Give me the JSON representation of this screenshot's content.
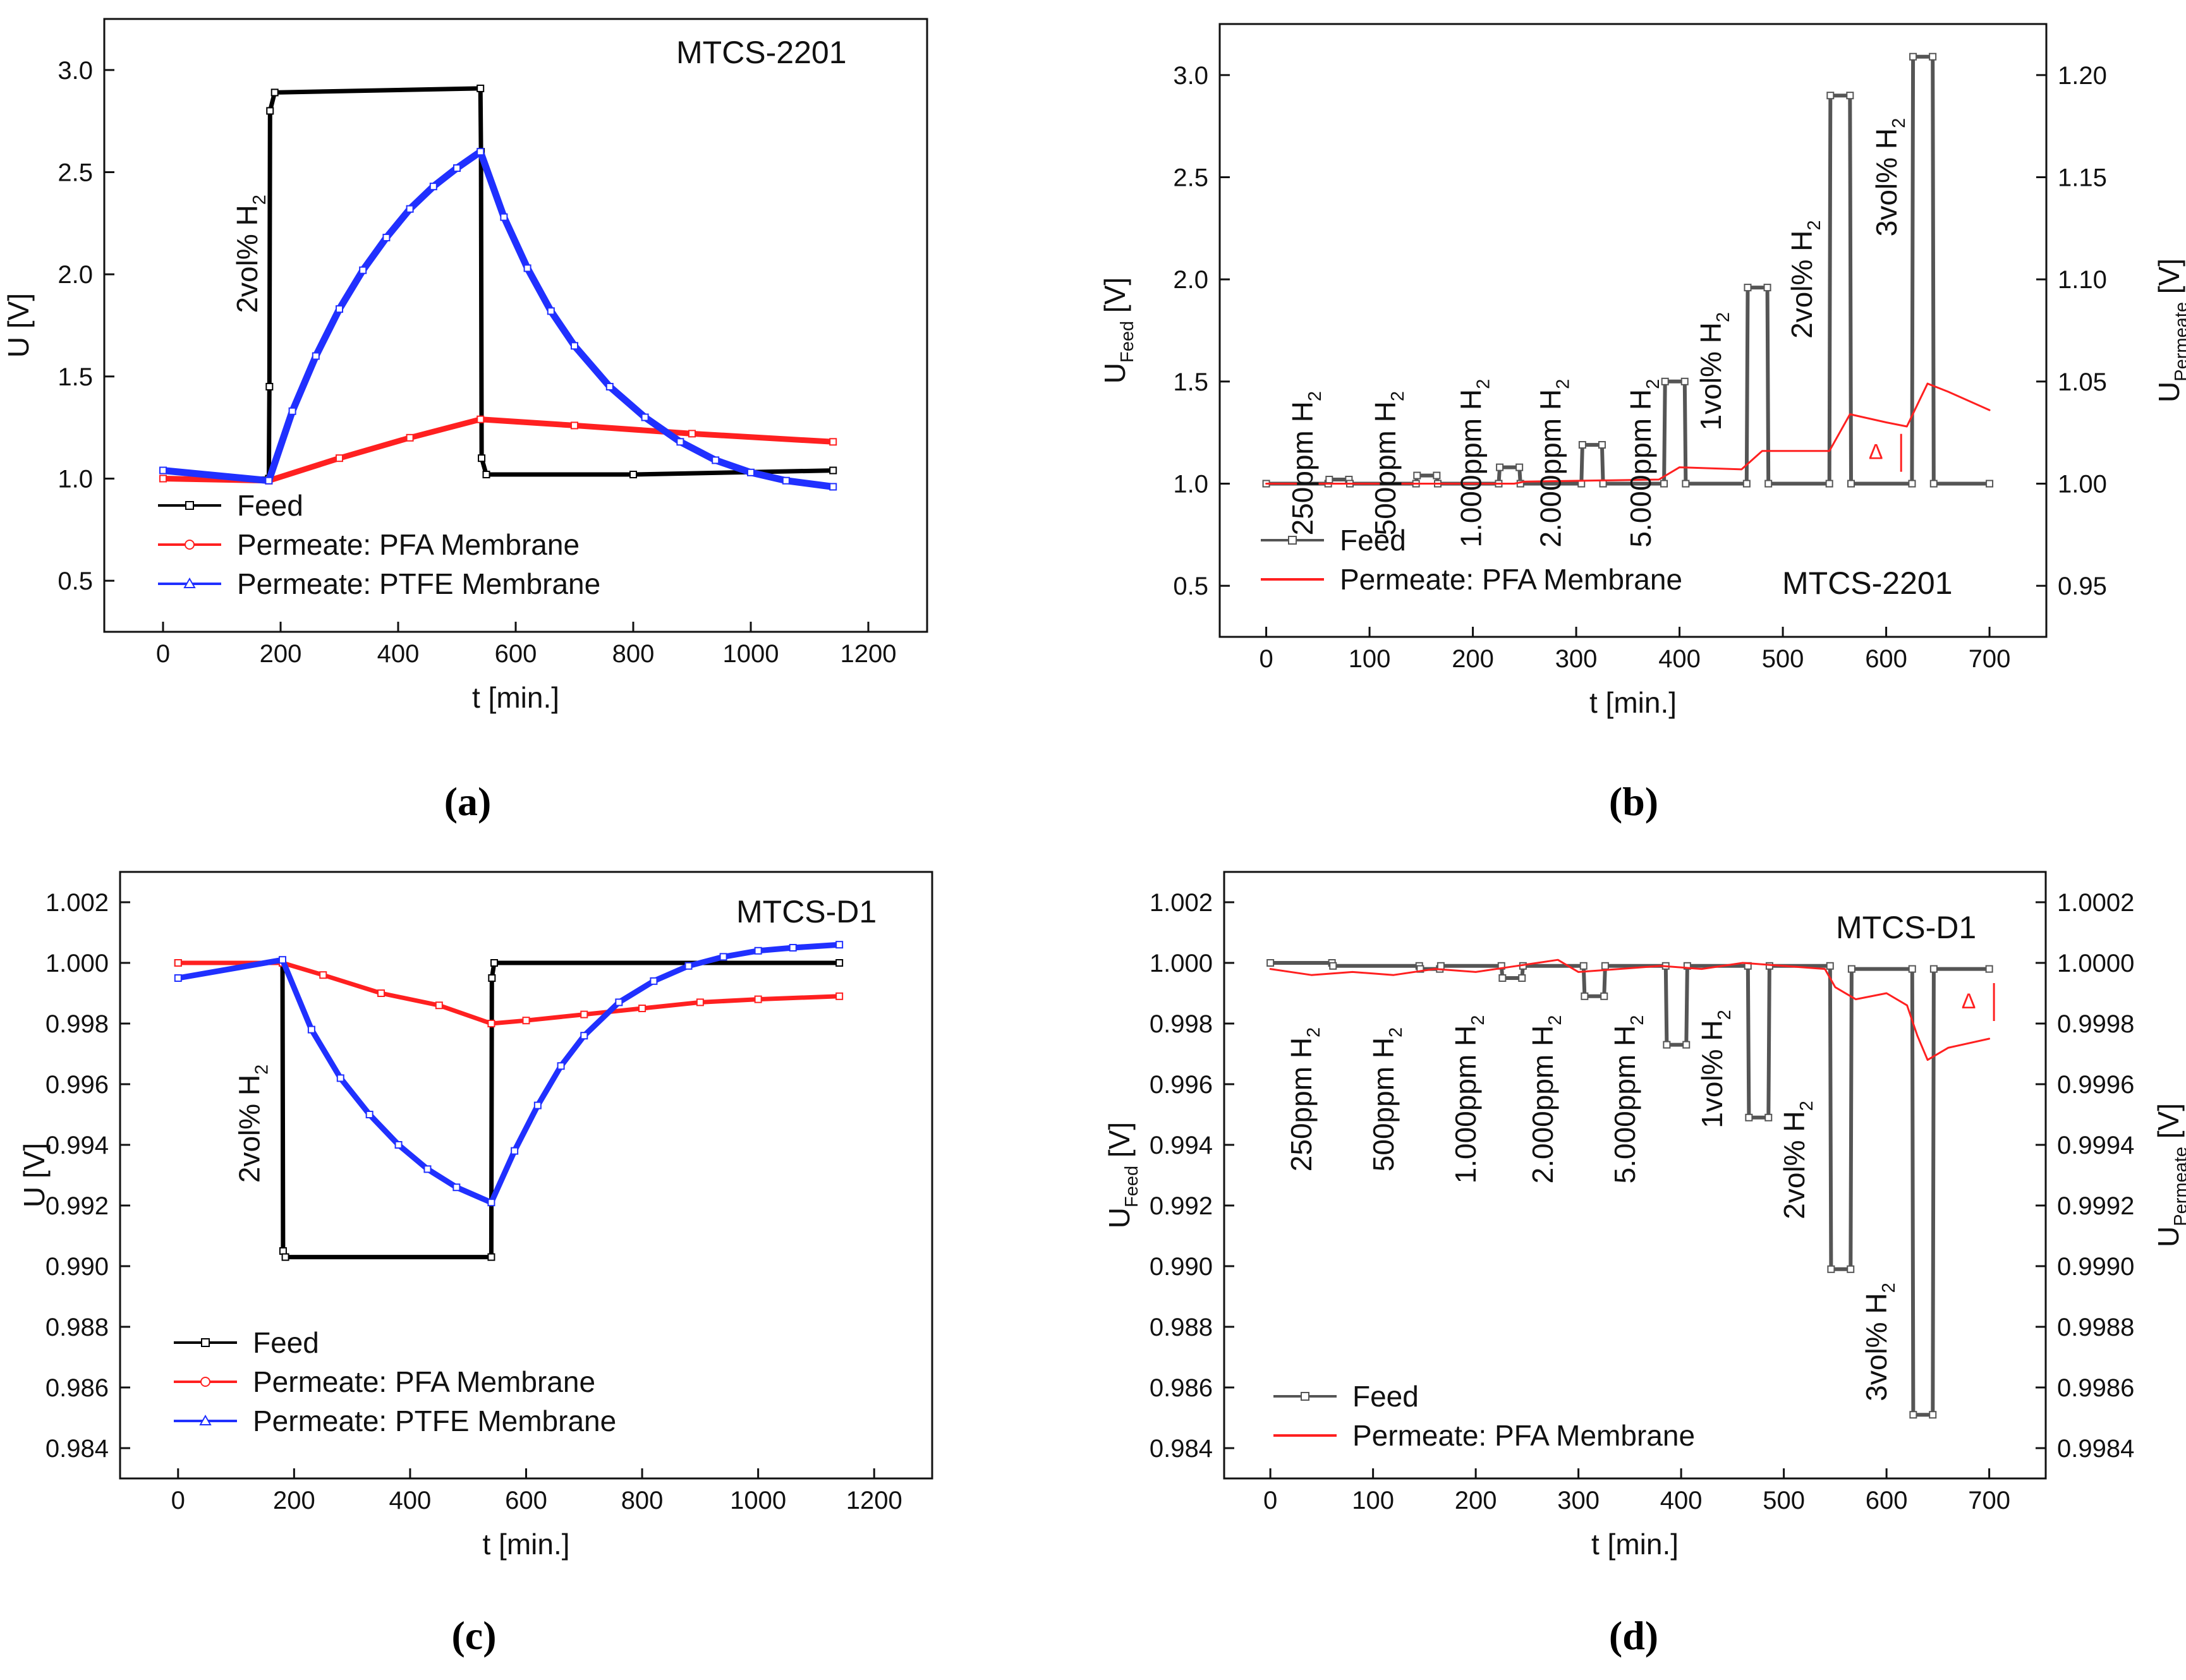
{
  "chart_data": [
    {
      "id": "a",
      "type": "line",
      "caption": "(a)",
      "title": "MTCS-2201",
      "xlabel": "t [min.]",
      "ylabel": "U [V]",
      "xlim": [
        -100,
        1300
      ],
      "ylim": [
        0.25,
        3.25
      ],
      "xticks": [
        0,
        200,
        400,
        600,
        800,
        1000,
        1200
      ],
      "yticks": [
        0.5,
        1.0,
        1.5,
        2.0,
        2.5,
        3.0
      ],
      "ytick_labels": [
        "0.5",
        "1.0",
        "1.5",
        "2.0",
        "2.5",
        "3.0"
      ],
      "annotations": [
        {
          "text": "2vol% H",
          "sub": "2",
          "x": 160,
          "y": 2.1,
          "rotate": -90
        }
      ],
      "legend": [
        {
          "name": "Feed",
          "color": "#000000",
          "marker": "square"
        },
        {
          "name": "Permeate: PFA Membrane",
          "color": "#ff2020",
          "marker": "circle"
        },
        {
          "name": "Permeate: PTFE Membrane",
          "color": "#2030ff",
          "marker": "triangle"
        }
      ],
      "series": [
        {
          "name": "Feed",
          "color": "#000000",
          "width": 7,
          "x": [
            0,
            180,
            181,
            182,
            190,
            540,
            541,
            542,
            550,
            800,
            1140
          ],
          "y": [
            1.0,
            1.0,
            1.45,
            2.8,
            2.89,
            2.91,
            2.6,
            1.1,
            1.02,
            1.02,
            1.04
          ]
        },
        {
          "name": "Permeate: PFA Membrane",
          "color": "#ff2020",
          "width": 9,
          "x": [
            0,
            180,
            300,
            420,
            540,
            700,
            900,
            1140
          ],
          "y": [
            1.0,
            0.99,
            1.1,
            1.2,
            1.29,
            1.26,
            1.22,
            1.18
          ]
        },
        {
          "name": "Permeate: PTFE Membrane",
          "color": "#2030ff",
          "width": 11,
          "x": [
            0,
            180,
            220,
            260,
            300,
            340,
            380,
            420,
            460,
            500,
            540,
            580,
            620,
            660,
            700,
            760,
            820,
            880,
            940,
            1000,
            1060,
            1140
          ],
          "y": [
            1.04,
            0.99,
            1.33,
            1.6,
            1.83,
            2.02,
            2.18,
            2.32,
            2.43,
            2.52,
            2.6,
            2.28,
            2.03,
            1.82,
            1.65,
            1.45,
            1.3,
            1.18,
            1.09,
            1.03,
            0.99,
            0.96
          ]
        }
      ]
    },
    {
      "id": "b",
      "type": "line",
      "caption": "(b)",
      "title": "MTCS-2201",
      "xlabel": "t [min.]",
      "ylabel": "U",
      "ylabel_sub": "Feed",
      "ylabel_unit": " [V]",
      "y2label": "U",
      "y2label_sub": "Permeate",
      "y2label_unit": " [V]",
      "xlim": [
        -45,
        755
      ],
      "ylim": [
        0.25,
        3.25
      ],
      "y2lim": [
        0.925,
        1.225
      ],
      "xticks": [
        0,
        100,
        200,
        300,
        400,
        500,
        600,
        700
      ],
      "yticks": [
        0.5,
        1.0,
        1.5,
        2.0,
        2.5,
        3.0
      ],
      "ytick_labels": [
        "0.5",
        "1.0",
        "1.5",
        "2.0",
        "2.5",
        "3.0"
      ],
      "y2ticks": [
        0.95,
        1.0,
        1.05,
        1.1,
        1.15,
        1.2
      ],
      "y2tick_labels": [
        "0.95",
        "1.00",
        "1.05",
        "1.10",
        "1.15",
        "1.20"
      ],
      "annotations": [
        {
          "text": "250ppm H",
          "sub": "2",
          "x": 45,
          "y": 1.1,
          "rotate": -90
        },
        {
          "text": "500ppm H",
          "sub": "2",
          "x": 125,
          "y": 1.1,
          "rotate": -90
        },
        {
          "text": "1.000ppm H",
          "sub": "2",
          "x": 208,
          "y": 1.1,
          "rotate": -90
        },
        {
          "text": "2.000ppm H",
          "sub": "2",
          "x": 285,
          "y": 1.1,
          "rotate": -90
        },
        {
          "text": "5.000ppm H",
          "sub": "2",
          "x": 372,
          "y": 1.1,
          "rotate": -90
        },
        {
          "text": "1vol% H",
          "sub": "2",
          "x": 440,
          "y": 1.55,
          "rotate": -90
        },
        {
          "text": "2vol% H",
          "sub": "2",
          "x": 528,
          "y": 2.0,
          "rotate": -90
        },
        {
          "text": "3vol% H",
          "sub": "2",
          "x": 610,
          "y": 2.5,
          "rotate": -90
        },
        {
          "text": "Δ",
          "x": 590,
          "y": 1.12,
          "rotate": 0,
          "color": "#ff2020"
        }
      ],
      "legend": [
        {
          "name": "Feed",
          "color": "#555555",
          "marker": "square"
        },
        {
          "name": "Permeate: PFA Membrane",
          "color": "#ff2020",
          "marker": "none"
        }
      ],
      "series": [
        {
          "name": "Feed",
          "color": "#555555",
          "width": 6,
          "x": [
            0,
            60,
            61,
            80,
            81,
            145,
            146,
            165,
            166,
            225,
            226,
            245,
            246,
            305,
            306,
            325,
            326,
            385,
            386,
            405,
            406,
            465,
            466,
            485,
            486,
            545,
            546,
            565,
            566,
            625,
            626,
            645,
            646,
            700
          ],
          "y": [
            1.0,
            1.0,
            1.02,
            1.02,
            1.0,
            1.0,
            1.04,
            1.04,
            1.0,
            1.0,
            1.08,
            1.08,
            1.0,
            1.0,
            1.19,
            1.19,
            1.0,
            1.0,
            1.5,
            1.5,
            1.0,
            1.0,
            1.96,
            1.96,
            1.0,
            1.0,
            2.9,
            2.9,
            1.0,
            1.0,
            3.09,
            3.09,
            1.0,
            1.0
          ]
        },
        {
          "name": "Permeate: PFA Membrane",
          "color": "#ff2020",
          "width": 3,
          "axis": "y2",
          "x": [
            0,
            240,
            250,
            380,
            400,
            460,
            480,
            545,
            565,
            600,
            620,
            640,
            660,
            700
          ],
          "y2": [
            1.0,
            1.0,
            1.001,
            1.002,
            1.008,
            1.007,
            1.016,
            1.016,
            1.034,
            1.03,
            1.028,
            1.049,
            1.045,
            1.036
          ]
        }
      ]
    },
    {
      "id": "c",
      "type": "line",
      "caption": "(c)",
      "title": "MTCS-D1",
      "xlabel": "t [min.]",
      "ylabel": "U [V]",
      "xlim": [
        -100,
        1300
      ],
      "ylim": [
        0.983,
        1.003
      ],
      "xticks": [
        0,
        200,
        400,
        600,
        800,
        1000,
        1200
      ],
      "yticks": [
        0.984,
        0.986,
        0.988,
        0.99,
        0.992,
        0.994,
        0.996,
        0.998,
        1.0,
        1.002
      ],
      "ytick_labels": [
        "0.984",
        "0.986",
        "0.988",
        "0.990",
        "0.992",
        "0.994",
        "0.996",
        "0.998",
        "1.000",
        "1.002"
      ],
      "annotations": [
        {
          "text": "2vol% H",
          "sub": "2",
          "x": 140,
          "y": 0.9947,
          "rotate": -90
        }
      ],
      "legend": [
        {
          "name": "Feed",
          "color": "#000000",
          "marker": "square"
        },
        {
          "name": "Permeate: PFA Membrane",
          "color": "#ff2020",
          "marker": "circle"
        },
        {
          "name": "Permeate: PTFE Membrane",
          "color": "#2030ff",
          "marker": "triangle"
        }
      ],
      "series": [
        {
          "name": "Feed",
          "color": "#000000",
          "width": 7,
          "x": [
            0,
            180,
            181,
            185,
            540,
            541,
            545,
            1140
          ],
          "y": [
            1.0,
            1.0,
            0.9905,
            0.9903,
            0.9903,
            0.9995,
            1.0,
            1.0
          ]
        },
        {
          "name": "Permeate: PFA Membrane",
          "color": "#ff2020",
          "width": 7,
          "x": [
            0,
            180,
            250,
            350,
            450,
            540,
            600,
            700,
            800,
            900,
            1000,
            1140
          ],
          "y": [
            1.0,
            1.0,
            0.9996,
            0.999,
            0.9986,
            0.998,
            0.9981,
            0.9983,
            0.9985,
            0.9987,
            0.9988,
            0.9989
          ]
        },
        {
          "name": "Permeate: PTFE Membrane",
          "color": "#2030ff",
          "width": 9,
          "x": [
            0,
            180,
            230,
            280,
            330,
            380,
            430,
            480,
            540,
            580,
            620,
            660,
            700,
            760,
            820,
            880,
            940,
            1000,
            1060,
            1140
          ],
          "y": [
            0.9995,
            1.0001,
            0.9978,
            0.9962,
            0.995,
            0.994,
            0.9932,
            0.9926,
            0.9921,
            0.9938,
            0.9953,
            0.9966,
            0.9976,
            0.9987,
            0.9994,
            0.9999,
            1.0002,
            1.0004,
            1.0005,
            1.0006
          ]
        }
      ]
    },
    {
      "id": "d",
      "type": "line",
      "caption": "(d)",
      "title": "MTCS-D1",
      "xlabel": "t [min.]",
      "ylabel": "U",
      "ylabel_sub": "Feed",
      "ylabel_unit": " [V]",
      "y2label": "U",
      "y2label_sub": "Permeate",
      "y2label_unit": " [V]",
      "xlim": [
        -45,
        755
      ],
      "ylim": [
        0.983,
        1.003
      ],
      "y2lim": [
        0.9983,
        1.0003
      ],
      "xticks": [
        0,
        100,
        200,
        300,
        400,
        500,
        600,
        700
      ],
      "yticks": [
        0.984,
        0.986,
        0.988,
        0.99,
        0.992,
        0.994,
        0.996,
        0.998,
        1.0,
        1.002
      ],
      "ytick_labels": [
        "0.984",
        "0.986",
        "0.988",
        "0.990",
        "0.992",
        "0.994",
        "0.996",
        "0.998",
        "1.000",
        "1.002"
      ],
      "y2ticks": [
        0.9984,
        0.9986,
        0.9988,
        0.999,
        0.9992,
        0.9994,
        0.9996,
        0.9998,
        1.0,
        1.0002
      ],
      "y2tick_labels": [
        "0.9984",
        "0.9986",
        "0.9988",
        "0.9990",
        "0.9992",
        "0.9994",
        "0.9996",
        "0.9998",
        "1.0000",
        "1.0002"
      ],
      "annotations": [
        {
          "text": "250ppm H",
          "sub": "2",
          "x": 40,
          "y": 0.9955,
          "rotate": -90
        },
        {
          "text": "500ppm H",
          "sub": "2",
          "x": 120,
          "y": 0.9955,
          "rotate": -90
        },
        {
          "text": "1.000ppm H",
          "sub": "2",
          "x": 200,
          "y": 0.9955,
          "rotate": -90
        },
        {
          "text": "2.000ppm H",
          "sub": "2",
          "x": 275,
          "y": 0.9955,
          "rotate": -90
        },
        {
          "text": "5.000ppm H",
          "sub": "2",
          "x": 355,
          "y": 0.9955,
          "rotate": -90
        },
        {
          "text": "1vol% H",
          "sub": "2",
          "x": 440,
          "y": 0.9965,
          "rotate": -90
        },
        {
          "text": "2vol% H",
          "sub": "2",
          "x": 520,
          "y": 0.9935,
          "rotate": -90
        },
        {
          "text": "3vol% H",
          "sub": "2",
          "x": 600,
          "y": 0.9875,
          "rotate": -90
        },
        {
          "text": "Δ",
          "x": 680,
          "y": 0.9985,
          "rotate": 0,
          "color": "#ff2020"
        }
      ],
      "legend": [
        {
          "name": "Feed",
          "color": "#555555",
          "marker": "square"
        },
        {
          "name": "Permeate: PFA Membrane",
          "color": "#ff2020",
          "marker": "none"
        }
      ],
      "series": [
        {
          "name": "Feed",
          "color": "#555555",
          "width": 6,
          "x": [
            0,
            60,
            61,
            145,
            146,
            165,
            166,
            225,
            226,
            245,
            246,
            305,
            306,
            325,
            326,
            385,
            386,
            405,
            406,
            465,
            466,
            485,
            486,
            545,
            546,
            565,
            566,
            625,
            626,
            645,
            646,
            700
          ],
          "y": [
            1.0,
            1.0,
            0.9999,
            0.9999,
            0.9998,
            0.9998,
            0.9999,
            0.9999,
            0.9995,
            0.9995,
            0.9999,
            0.9999,
            0.9989,
            0.9989,
            0.9999,
            0.9999,
            0.9973,
            0.9973,
            0.9999,
            0.9999,
            0.9949,
            0.9949,
            0.9999,
            0.9999,
            0.9899,
            0.9899,
            0.9998,
            0.9998,
            0.9851,
            0.9851,
            0.9998,
            0.9998
          ]
        },
        {
          "name": "Permeate: PFA Membrane",
          "color": "#ff2020",
          "width": 3,
          "axis": "y2",
          "x": [
            0,
            40,
            80,
            120,
            160,
            200,
            240,
            280,
            300,
            340,
            380,
            420,
            460,
            500,
            540,
            550,
            570,
            600,
            620,
            630,
            640,
            660,
            700
          ],
          "y2": [
            0.99998,
            0.99996,
            0.99997,
            0.99996,
            0.99998,
            0.99997,
            0.99999,
            1.00001,
            0.99997,
            0.99998,
            0.99999,
            0.99998,
            1.0,
            0.99999,
            0.99998,
            0.99992,
            0.99988,
            0.9999,
            0.99986,
            0.99976,
            0.99968,
            0.99972,
            0.99975
          ]
        }
      ]
    }
  ]
}
